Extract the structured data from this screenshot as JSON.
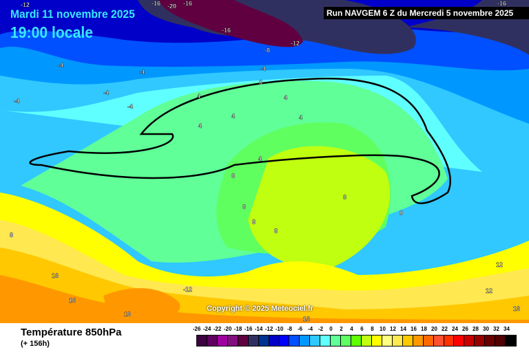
{
  "header": {
    "date": "Mardi 11 novembre 2025",
    "time": "19:00 locale",
    "run": "Run NAVGEM 6 Z du Mercredi 5 novembre 2025"
  },
  "footer": {
    "title": "Température 850hPa",
    "subtitle": "(+ 156h)",
    "copyright": "Copyright © 2025 Meteociel.fr"
  },
  "legend": {
    "labels": [
      "-26",
      "-24",
      "-22",
      "-20",
      "-18",
      "-16",
      "-14",
      "-12",
      "-10",
      "-8",
      "-6",
      "-4",
      "-2",
      "0",
      "2",
      "4",
      "6",
      "8",
      "10",
      "12",
      "14",
      "16",
      "18",
      "20",
      "22",
      "24",
      "26",
      "28",
      "30",
      "32",
      "34"
    ],
    "colors": [
      "#3d0040",
      "#5e0060",
      "#a000a0",
      "#801080",
      "#600040",
      "#303060",
      "#003090",
      "#0000c8",
      "#0000ff",
      "#0050ff",
      "#0098ff",
      "#30c8ff",
      "#60ffff",
      "#60ff98",
      "#60ff60",
      "#60ff00",
      "#c0ff10",
      "#ffff00",
      "#ffff80",
      "#ffe850",
      "#ffc800",
      "#ff9800",
      "#ff6800",
      "#ff5030",
      "#ff3000",
      "#ff0000",
      "#c80000",
      "#980000",
      "#680000",
      "#500000",
      "#000000"
    ]
  },
  "contour_labels": [
    "-12",
    "-16",
    "-20",
    "-16",
    "-16",
    "-12",
    "-8",
    "-16",
    "-4",
    "-4",
    "-4",
    "-4",
    "-4",
    "-4",
    "0",
    "4",
    "4",
    "4",
    "4",
    "4",
    "4",
    "8",
    "8",
    "8",
    "8",
    "8",
    "0",
    "8",
    "12",
    "12",
    "16",
    "16",
    "16",
    "16",
    "-12",
    "16"
  ]
}
